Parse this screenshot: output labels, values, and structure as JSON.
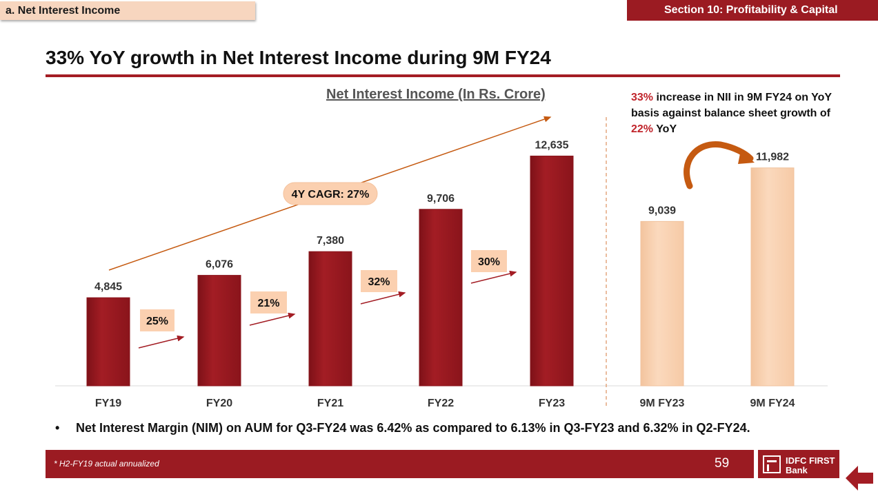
{
  "header": {
    "section_label": "a. Net Interest Income",
    "section_title": "Section 10:  Profitability & Capital",
    "headline": "33% YoY growth in Net Interest Income during 9M FY24"
  },
  "note": {
    "part1": "33%",
    "part2": " increase in NII in 9M FY24 on YoY basis against balance sheet growth of ",
    "part3": "22%",
    "part4": " YoY"
  },
  "bullet": "Net Interest Margin (NIM) on AUM for Q3-FY24 was 6.42% as compared to 6.13% in Q3-FY23 and 6.32% in Q2-FY24.",
  "footer": {
    "footnote": "* H2-FY19 actual annualized",
    "page_number": "59",
    "logo_line1": "IDFC FIRST",
    "logo_line2": "Bank"
  },
  "chart_data": {
    "type": "bar",
    "title": "Net Interest Income (In Rs. Crore)",
    "categories": [
      "FY19",
      "FY20",
      "FY21",
      "FY22",
      "FY23",
      "9M FY23",
      "9M FY24"
    ],
    "values": [
      4845,
      6076,
      7380,
      9706,
      12635,
      9039,
      11982
    ],
    "value_labels": [
      "4,845",
      "6,076",
      "7,380",
      "9,706",
      "12,635",
      "9,039",
      "11,982"
    ],
    "growth_labels": [
      "25%",
      "21%",
      "32%",
      "30%"
    ],
    "cagr_label": "4Y CAGR: 27%",
    "ylim": [
      0,
      14000
    ],
    "colors": {
      "annual_bar": "#a31d24",
      "ytd_bar": "#fbd5b5",
      "growth_box": "#fbd0b0",
      "trend_line": "#c55a11"
    }
  }
}
